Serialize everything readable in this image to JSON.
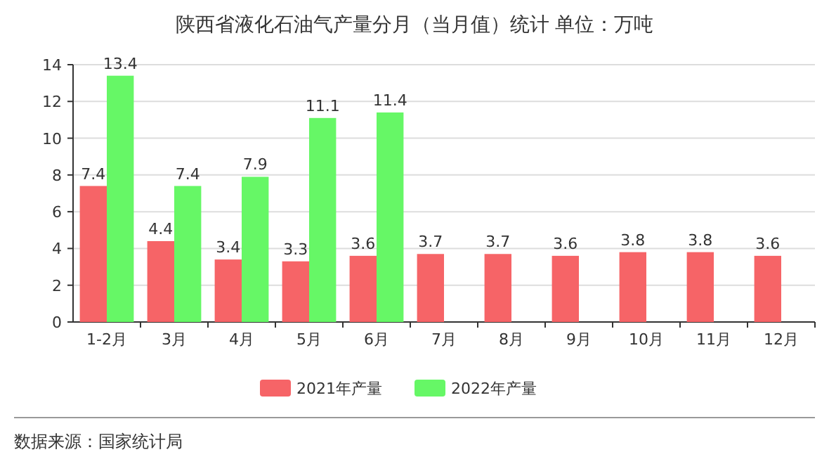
{
  "chart_data": {
    "type": "bar",
    "title": "陕西省液化石油气产量分月（当月值）统计  单位：万吨",
    "categories": [
      "1-2月",
      "3月",
      "4月",
      "5月",
      "6月",
      "7月",
      "8月",
      "9月",
      "10月",
      "11月",
      "12月"
    ],
    "series": [
      {
        "name": "2021年产量",
        "color": "#f66467",
        "values": [
          7.4,
          4.4,
          3.4,
          3.3,
          3.6,
          3.7,
          3.7,
          3.6,
          3.8,
          3.8,
          3.6
        ]
      },
      {
        "name": "2022年产量",
        "color": "#66f766",
        "values": [
          13.4,
          7.4,
          7.9,
          11.1,
          11.4,
          null,
          null,
          null,
          null,
          null,
          null
        ]
      }
    ],
    "ylim": [
      0,
      14
    ],
    "yticks": [
      0,
      2,
      4,
      6,
      8,
      10,
      12,
      14
    ],
    "grid": "y",
    "legend": "bottom",
    "data_labels": true,
    "annotations": [
      "数据来源：国家统计局"
    ]
  }
}
